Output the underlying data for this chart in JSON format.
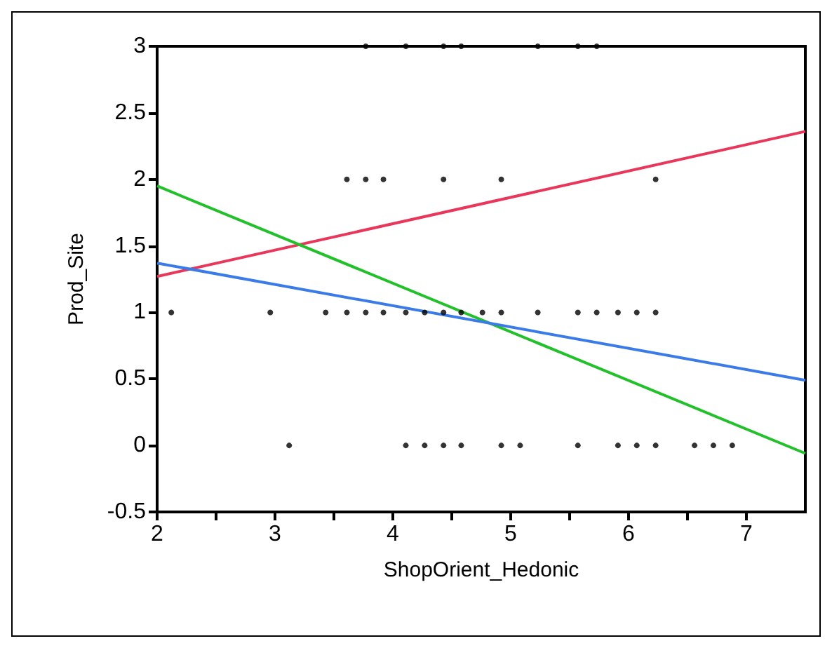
{
  "chart_data": {
    "type": "scatter",
    "xlabel": "ShopOrient_Hedonic",
    "ylabel": "Prod_Site",
    "xlim": [
      2,
      7.5
    ],
    "ylim": [
      -0.5,
      3
    ],
    "xticks": [
      2,
      {
        "value": 2.5,
        "label": null
      },
      3,
      {
        "value": 3.5,
        "label": null
      },
      4,
      {
        "value": 4.5,
        "label": null
      },
      5,
      {
        "value": 5.5,
        "label": null
      },
      6,
      {
        "value": 6.5,
        "label": null
      },
      7
    ],
    "yticks": [
      -0.5,
      0,
      0.5,
      1,
      1.5,
      2,
      2.5,
      3
    ],
    "grid": false,
    "marker": "circle",
    "series": [
      {
        "color": "#000000",
        "x": [
          3.77,
          4.11,
          4.43,
          4.58,
          5.23,
          5.57,
          5.73,
          3.61,
          3.77,
          3.92,
          4.43,
          4.92,
          6.23,
          2.12,
          2.96,
          3.43,
          3.61,
          3.77,
          3.92,
          4.11,
          4.27,
          4.43,
          4.58,
          4.76,
          4.92,
          5.23,
          5.57,
          5.73,
          5.91,
          6.07,
          6.23,
          3.12,
          4.11,
          4.27,
          4.43,
          4.58,
          4.92,
          5.08,
          5.57,
          5.91,
          6.07,
          6.23,
          6.56,
          6.72,
          6.88
        ],
        "values": [
          3,
          3,
          3,
          3,
          3,
          3,
          3,
          2,
          2,
          2,
          2,
          2,
          2,
          1,
          1,
          1,
          1,
          1,
          1,
          1,
          1,
          1,
          1,
          1,
          1,
          1,
          1,
          1,
          1,
          1,
          1,
          0,
          0,
          0,
          0,
          0,
          0,
          0,
          0,
          0,
          0,
          0,
          0,
          0,
          0
        ]
      },
      {
        "type": "line",
        "marker": "none",
        "color": "#e8375a",
        "x": [
          2,
          7.5
        ],
        "values": [
          1.27,
          2.36
        ]
      },
      {
        "type": "line",
        "marker": "none",
        "color": "#22c02a",
        "x": [
          2,
          7.5
        ],
        "values": [
          1.95,
          -0.06
        ]
      },
      {
        "type": "line",
        "marker": "none",
        "color": "#3a7be8",
        "x": [
          2,
          7.5
        ],
        "values": [
          1.37,
          0.49
        ]
      }
    ]
  }
}
